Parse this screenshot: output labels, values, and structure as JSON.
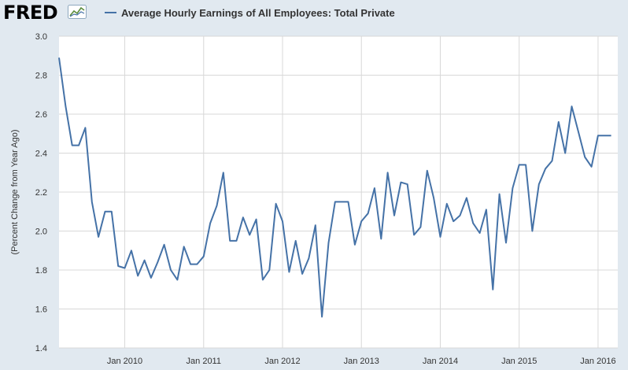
{
  "header": {
    "logo": "FRED",
    "logo_icon": "fred-trend-icon",
    "legend_label": "Average Hourly Earnings of All Employees: Total Private"
  },
  "colors": {
    "series": "#4572a7",
    "background": "#e1e9f0",
    "plot_background": "#ffffff",
    "grid": "#d8d8d8"
  },
  "chart_data": {
    "type": "line",
    "title": "",
    "xlabel": "",
    "ylabel": "(Percent Change from Year Ago)",
    "ylim": [
      1.4,
      3.0
    ],
    "y_ticks": [
      "1.4",
      "1.6",
      "1.8",
      "2.0",
      "2.2",
      "2.4",
      "2.6",
      "2.8",
      "3.0"
    ],
    "x_ticks": [
      "Jan 2010",
      "Jan 2011",
      "Jan 2012",
      "Jan 2013",
      "Jan 2014",
      "Jan 2015",
      "Jan 2016"
    ],
    "xlim": [
      "2009-03",
      "2016-04"
    ],
    "grid": true,
    "legend_position": "top-left",
    "series": [
      {
        "name": "Average Hourly Earnings of All Employees: Total Private",
        "x": [
          "2009-03",
          "2009-04",
          "2009-05",
          "2009-06",
          "2009-07",
          "2009-08",
          "2009-09",
          "2009-10",
          "2009-11",
          "2009-12",
          "2010-01",
          "2010-02",
          "2010-03",
          "2010-04",
          "2010-05",
          "2010-06",
          "2010-07",
          "2010-08",
          "2010-09",
          "2010-10",
          "2010-11",
          "2010-12",
          "2011-01",
          "2011-02",
          "2011-03",
          "2011-04",
          "2011-05",
          "2011-06",
          "2011-07",
          "2011-08",
          "2011-09",
          "2011-10",
          "2011-11",
          "2011-12",
          "2012-01",
          "2012-02",
          "2012-03",
          "2012-04",
          "2012-05",
          "2012-06",
          "2012-07",
          "2012-08",
          "2012-09",
          "2012-10",
          "2012-11",
          "2012-12",
          "2013-01",
          "2013-02",
          "2013-03",
          "2013-04",
          "2013-05",
          "2013-06",
          "2013-07",
          "2013-08",
          "2013-09",
          "2013-10",
          "2013-11",
          "2013-12",
          "2014-01",
          "2014-02",
          "2014-03",
          "2014-04",
          "2014-05",
          "2014-06",
          "2014-07",
          "2014-08",
          "2014-09",
          "2014-10",
          "2014-11",
          "2014-12",
          "2015-01",
          "2015-02",
          "2015-03",
          "2015-04",
          "2015-05",
          "2015-06",
          "2015-07",
          "2015-08",
          "2015-09",
          "2015-10",
          "2015-11",
          "2015-12",
          "2016-01",
          "2016-02",
          "2016-03"
        ],
        "values": [
          2.89,
          2.64,
          2.44,
          2.44,
          2.53,
          2.15,
          1.97,
          2.1,
          2.1,
          1.82,
          1.81,
          1.9,
          1.77,
          1.85,
          1.76,
          1.84,
          1.93,
          1.8,
          1.75,
          1.92,
          1.83,
          1.83,
          1.87,
          2.04,
          2.13,
          2.3,
          1.95,
          1.95,
          2.07,
          1.98,
          2.06,
          1.75,
          1.8,
          2.14,
          2.05,
          1.79,
          1.95,
          1.78,
          1.86,
          2.03,
          1.56,
          1.94,
          2.15,
          2.15,
          2.15,
          1.93,
          2.05,
          2.09,
          2.22,
          1.96,
          2.3,
          2.08,
          2.25,
          2.24,
          1.98,
          2.02,
          2.31,
          2.17,
          1.97,
          2.14,
          2.05,
          2.08,
          2.17,
          2.04,
          1.99,
          2.11,
          1.7,
          2.19,
          1.94,
          2.22,
          2.34,
          2.34,
          2.0,
          2.24,
          2.32,
          2.36,
          2.56,
          2.4,
          2.64,
          2.51,
          2.38,
          2.33,
          2.49,
          2.49,
          2.49
        ]
      }
    ]
  }
}
